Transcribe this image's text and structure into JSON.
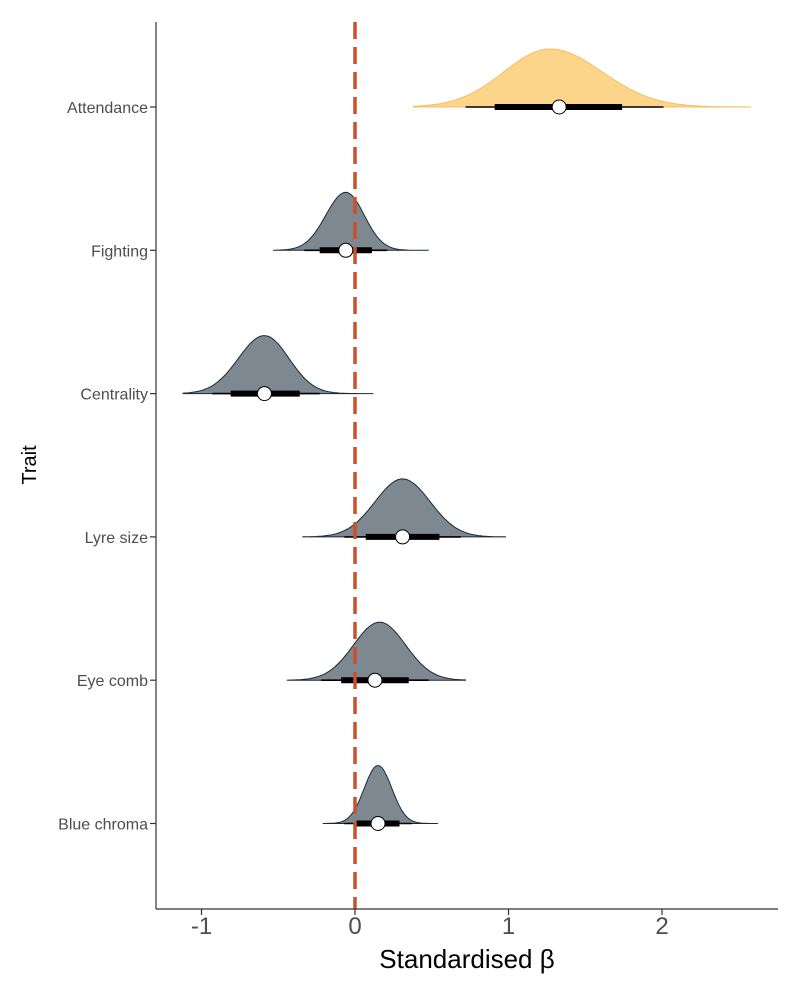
{
  "chart_data": {
    "type": "halfeye",
    "title": "",
    "xlabel": "Standardised β",
    "ylabel": "Trait",
    "xlim": [
      -1.3,
      2.75
    ],
    "xticks": [
      -1,
      0,
      1,
      2
    ],
    "xtick_labels": [
      "-1",
      "0",
      "1",
      "2"
    ],
    "grid": false,
    "legend": "none",
    "reference_line": {
      "x": 0,
      "style": "dashed",
      "color": "#C9512B"
    },
    "traits": [
      {
        "name": "Attendance",
        "color": "#FDD58A",
        "edge": "#F2C060",
        "point": 1.33,
        "inner": [
          0.91,
          1.74
        ],
        "outer": [
          0.72,
          2.01
        ],
        "range": [
          0.38,
          2.58
        ],
        "mode": 1.27,
        "sd_left": 0.3,
        "sd_right": 0.34
      },
      {
        "name": "Fighting",
        "color": "#7D8890",
        "edge": "#1a2a3a",
        "point": -0.06,
        "inner": [
          -0.23,
          0.11
        ],
        "outer": [
          -0.33,
          0.21
        ],
        "range": [
          -0.53,
          0.48
        ],
        "mode": -0.06,
        "sd_left": 0.13,
        "sd_right": 0.12
      },
      {
        "name": "Centrality",
        "color": "#7D8890",
        "edge": "#1a2a3a",
        "point": -0.59,
        "inner": [
          -0.81,
          -0.36
        ],
        "outer": [
          -0.93,
          -0.23
        ],
        "range": [
          -1.12,
          0.12
        ],
        "mode": -0.59,
        "sd_left": 0.17,
        "sd_right": 0.16
      },
      {
        "name": "Lyre size",
        "color": "#7D8890",
        "edge": "#1a2a3a",
        "point": 0.31,
        "inner": [
          0.07,
          0.55
        ],
        "outer": [
          -0.07,
          0.69
        ],
        "range": [
          -0.34,
          0.98
        ],
        "mode": 0.31,
        "sd_left": 0.18,
        "sd_right": 0.18
      },
      {
        "name": "Eye comb",
        "color": "#7D8890",
        "edge": "#1a2a3a",
        "point": 0.13,
        "inner": [
          -0.09,
          0.35
        ],
        "outer": [
          -0.22,
          0.48
        ],
        "range": [
          -0.44,
          0.72
        ],
        "mode": 0.16,
        "sd_left": 0.17,
        "sd_right": 0.17
      },
      {
        "name": "Blue chroma",
        "color": "#7D8890",
        "edge": "#1a2a3a",
        "point": 0.15,
        "inner": [
          0.01,
          0.29
        ],
        "outer": [
          -0.07,
          0.37
        ],
        "range": [
          -0.21,
          0.54
        ],
        "mode": 0.15,
        "sd_left": 0.09,
        "sd_right": 0.09
      }
    ]
  }
}
